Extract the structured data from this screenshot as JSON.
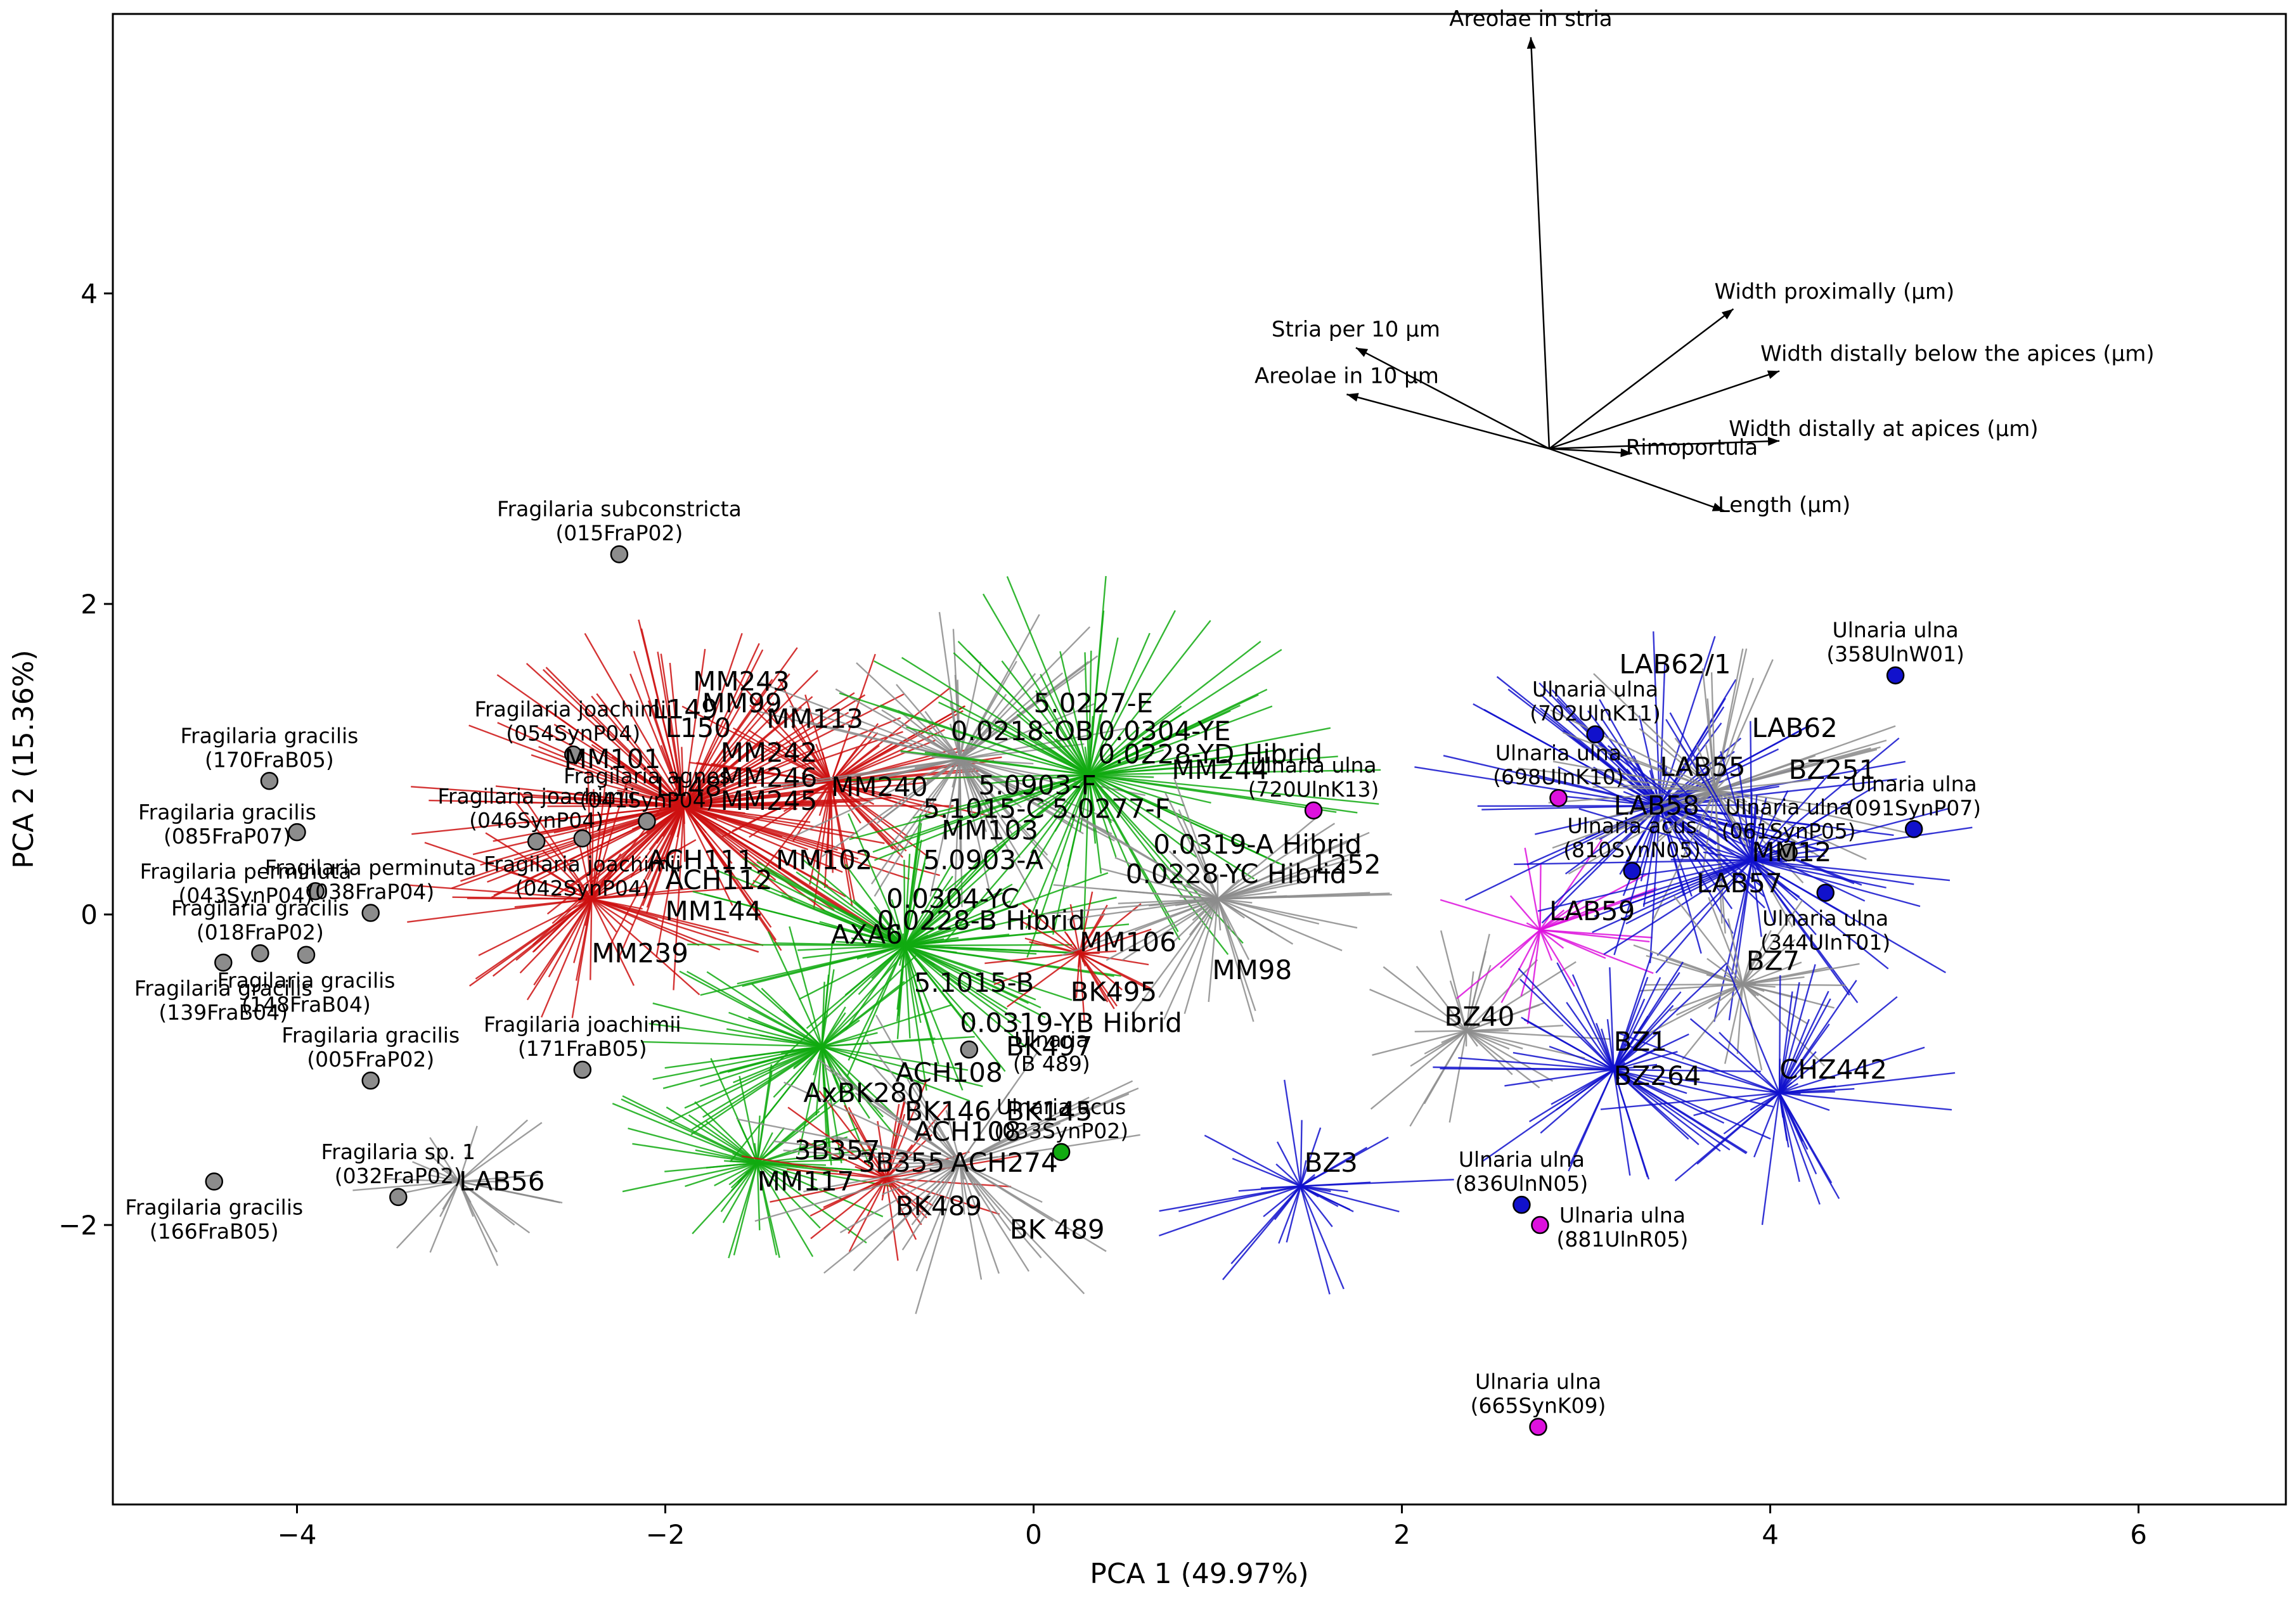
{
  "chart_data": {
    "type": "scatter",
    "title": "",
    "xlabel": "PCA 1 (49.97%)",
    "ylabel": "PCA 2 (15.36%)",
    "xlim": [
      -5.0,
      6.8
    ],
    "ylim": [
      -3.8,
      5.8
    ],
    "xticks": [
      -4,
      -2,
      0,
      2,
      4,
      6
    ],
    "yticks": [
      -2,
      0,
      2,
      4
    ],
    "colors": {
      "gray": "#8c8c8c",
      "red": "#cc1111",
      "green": "#11aa11",
      "blue": "#1111cc",
      "magenta": "#dd11dd",
      "axis": "#000000"
    },
    "reference_points": [
      {
        "label_line1": "Fragilaria subconstricta",
        "label_line2": "(015FraP02)",
        "x": -2.25,
        "y": 2.32,
        "color": "gray",
        "label_pos": "above"
      },
      {
        "label_line1": "Fragilaria gracilis",
        "label_line2": "(170FraB05)",
        "x": -4.15,
        "y": 0.86,
        "color": "gray",
        "label_pos": "above"
      },
      {
        "label_line1": "Fragilaria gracilis",
        "label_line2": "(085FraP07)",
        "x": -4.0,
        "y": 0.53,
        "color": "gray",
        "label_pos": "left"
      },
      {
        "label_line1": "Fragilaria perminuta",
        "label_line2": "(043SynP04)",
        "x": -3.9,
        "y": 0.15,
        "color": "gray",
        "label_pos": "left"
      },
      {
        "label_line1": "Fragilaria gracilis",
        "label_line2": "(018FraP02)",
        "x": -4.2,
        "y": -0.25,
        "color": "gray",
        "label_pos": "above"
      },
      {
        "label_line1": "Fragilaria gracilis",
        "label_line2": "(139FraB04)",
        "x": -4.4,
        "y": -0.31,
        "color": "gray",
        "label_pos": "below"
      },
      {
        "label_line1": "Fragilaria gracilis",
        "label_line2": "(148FraB04)",
        "x": -3.95,
        "y": -0.26,
        "color": "gray",
        "label_pos": "below"
      },
      {
        "label_line1": "Fragilaria perminuta",
        "label_line2": "(038FraP04)",
        "x": -3.6,
        "y": 0.01,
        "color": "gray",
        "label_pos": "above"
      },
      {
        "label_line1": "Fragilaria joachimii",
        "label_line2": "(054SynP04)",
        "x": -2.5,
        "y": 1.03,
        "color": "gray",
        "label_pos": "above"
      },
      {
        "label_line1": "Fragilaria joachimii",
        "label_line2": "(046SynP04)",
        "x": -2.7,
        "y": 0.47,
        "color": "gray",
        "label_pos": "above"
      },
      {
        "label_line1": "Fragilaria joachimii",
        "label_line2": "(042SynP04)",
        "x": -2.45,
        "y": 0.49,
        "color": "gray",
        "label_pos": "below"
      },
      {
        "label_line1": "Fragilaria agnes",
        "label_line2": "(041SynP04)",
        "x": -2.1,
        "y": 0.6,
        "color": "gray",
        "label_pos": "above"
      },
      {
        "label_line1": "Fragilaria joachimii",
        "label_line2": "(171FraB05)",
        "x": -2.45,
        "y": -1.0,
        "color": "gray",
        "label_pos": "above"
      },
      {
        "label_line1": "Fragilaria gracilis",
        "label_line2": "(005FraP02)",
        "x": -3.6,
        "y": -1.07,
        "color": "gray",
        "label_pos": "above"
      },
      {
        "label_line1": "Fragilaria sp. 1",
        "label_line2": "(032FraP02)",
        "x": -3.45,
        "y": -1.82,
        "color": "gray",
        "label_pos": "above"
      },
      {
        "label_line1": "Fragilaria gracilis",
        "label_line2": "(166FraB05)",
        "x": -4.45,
        "y": -1.72,
        "color": "gray",
        "label_pos": "below"
      },
      {
        "label_line1": "Ulnaria ulna",
        "label_line2": "(720UlnK13)",
        "x": 1.52,
        "y": 0.67,
        "color": "magenta",
        "label_pos": "above"
      },
      {
        "label_line1": "Ulnaria",
        "label_line2": "(B 489)",
        "x": -0.35,
        "y": -0.87,
        "color": "gray",
        "label_pos": "right"
      },
      {
        "label_line1": "Ulnaria acus",
        "label_line2": "(033SynP02)",
        "x": 0.15,
        "y": -1.53,
        "color": "green",
        "label_pos": "above"
      },
      {
        "label_line1": "Ulnaria ulna",
        "label_line2": "(358UlnW01)",
        "x": 4.68,
        "y": 1.54,
        "color": "blue",
        "label_pos": "above"
      },
      {
        "label_line1": "Ulnaria ulna",
        "label_line2": "(702UlnK11)",
        "x": 3.05,
        "y": 1.16,
        "color": "blue",
        "label_pos": "above"
      },
      {
        "label_line1": "Ulnaria ulna",
        "label_line2": "(698UlnK10)",
        "x": 2.85,
        "y": 0.75,
        "color": "magenta",
        "label_pos": "above"
      },
      {
        "label_line1": "Ulnaria acus",
        "label_line2": "(810SynN05)",
        "x": 3.25,
        "y": 0.28,
        "color": "blue",
        "label_pos": "above"
      },
      {
        "label_line1": "Ulnaria ulna",
        "label_line2": "(061SynP05)",
        "x": 4.1,
        "y": 0.4,
        "color": "gray",
        "label_pos": "above"
      },
      {
        "label_line1": "Ulnaria ulna",
        "label_line2": "(091SynP07)",
        "x": 4.78,
        "y": 0.55,
        "color": "blue",
        "label_pos": "above"
      },
      {
        "label_line1": "Ulnaria ulna",
        "label_line2": "(344UlnT01)",
        "x": 4.3,
        "y": 0.14,
        "color": "blue",
        "label_pos": "below"
      },
      {
        "label_line1": "Ulnaria ulna",
        "label_line2": "(836UlnN05)",
        "x": 2.65,
        "y": -1.87,
        "color": "blue",
        "label_pos": "above"
      },
      {
        "label_line1": "Ulnaria ulna",
        "label_line2": "(881UlnR05)",
        "x": 2.75,
        "y": -2.0,
        "color": "magenta",
        "label_pos": "right"
      },
      {
        "label_line1": "Ulnaria ulna",
        "label_line2": "(665SynK09)",
        "x": 2.74,
        "y": -3.3,
        "color": "magenta",
        "label_pos": "above"
      }
    ],
    "centroid_labels": [
      {
        "label": "LAB56",
        "x": -3.12,
        "y": -1.72
      },
      {
        "label": "MM243",
        "x": -1.85,
        "y": 1.5
      },
      {
        "label": "MM99",
        "x": -1.8,
        "y": 1.36
      },
      {
        "label": "L149",
        "x": -2.07,
        "y": 1.32
      },
      {
        "label": "MM113",
        "x": -1.45,
        "y": 1.26
      },
      {
        "label": "L150",
        "x": -2.0,
        "y": 1.2
      },
      {
        "label": "MM242",
        "x": -1.7,
        "y": 1.04
      },
      {
        "label": "MM101",
        "x": -2.55,
        "y": 1.0
      },
      {
        "label": "MM246",
        "x": -1.7,
        "y": 0.88
      },
      {
        "label": "MM245",
        "x": -1.7,
        "y": 0.73
      },
      {
        "label": "MM240",
        "x": -1.1,
        "y": 0.82
      },
      {
        "label": "L148",
        "x": -2.05,
        "y": 0.82
      },
      {
        "label": "ACH111",
        "x": -2.1,
        "y": 0.35
      },
      {
        "label": "MM102",
        "x": -1.4,
        "y": 0.35
      },
      {
        "label": "ACH112",
        "x": -2.0,
        "y": 0.22
      },
      {
        "label": "MM144",
        "x": -2.0,
        "y": 0.02
      },
      {
        "label": "MM239",
        "x": -2.4,
        "y": -0.25
      },
      {
        "label": "5.0227-E",
        "x": 0.0,
        "y": 1.36
      },
      {
        "label": "0.0218-OB",
        "x": -0.45,
        "y": 1.18
      },
      {
        "label": "0.0304-YE",
        "x": 0.35,
        "y": 1.18
      },
      {
        "label": "0.0228-YD Hibrid",
        "x": 0.35,
        "y": 1.03
      },
      {
        "label": "MM244",
        "x": 0.75,
        "y": 0.93
      },
      {
        "label": "5.0903-F",
        "x": -0.3,
        "y": 0.83
      },
      {
        "label": "5.1015-C",
        "x": -0.6,
        "y": 0.68
      },
      {
        "label": "5.0277-F",
        "x": 0.1,
        "y": 0.68
      },
      {
        "label": "MM103",
        "x": -0.5,
        "y": 0.54
      },
      {
        "label": "0.0319-A Hibrid",
        "x": 0.65,
        "y": 0.45
      },
      {
        "label": "5.0903-A",
        "x": -0.6,
        "y": 0.35
      },
      {
        "label": "0.0228-YC Hibrid",
        "x": 0.5,
        "y": 0.26
      },
      {
        "label": "L252",
        "x": 1.53,
        "y": 0.32
      },
      {
        "label": "0.0304-YC",
        "x": -0.8,
        "y": 0.1
      },
      {
        "label": "0.0228-B Hibrid",
        "x": -0.85,
        "y": -0.04
      },
      {
        "label": "AXA6",
        "x": -1.1,
        "y": -0.13
      },
      {
        "label": "MM106",
        "x": 0.25,
        "y": -0.18
      },
      {
        "label": "MM98",
        "x": 0.97,
        "y": -0.36
      },
      {
        "label": "5.1015-B",
        "x": -0.65,
        "y": -0.44
      },
      {
        "label": "BK495",
        "x": 0.2,
        "y": -0.5
      },
      {
        "label": "0.0319-YB Hibrid",
        "x": -0.4,
        "y": -0.7
      },
      {
        "label": "BK497",
        "x": -0.15,
        "y": -0.85
      },
      {
        "label": "ACH108",
        "x": -0.75,
        "y": -1.02
      },
      {
        "label": "AxBK280",
        "x": -1.25,
        "y": -1.15
      },
      {
        "label": "BK146",
        "x": -0.7,
        "y": -1.27
      },
      {
        "label": "BK145",
        "x": -0.15,
        "y": -1.27
      },
      {
        "label": "ACH108",
        "x": -0.65,
        "y": -1.4
      },
      {
        "label": "3B357",
        "x": -1.3,
        "y": -1.52
      },
      {
        "label": "3B355",
        "x": -0.95,
        "y": -1.6
      },
      {
        "label": "ACH274",
        "x": -0.45,
        "y": -1.6
      },
      {
        "label": "MM117",
        "x": -1.5,
        "y": -1.72
      },
      {
        "label": "BK489",
        "x": -0.75,
        "y": -1.88
      },
      {
        "label": "BK 489",
        "x": -0.13,
        "y": -2.03
      },
      {
        "label": "LAB62/1",
        "x": 3.18,
        "y": 1.61
      },
      {
        "label": "LAB62",
        "x": 3.9,
        "y": 1.2
      },
      {
        "label": "LAB55",
        "x": 3.4,
        "y": 0.95
      },
      {
        "label": "BZ251",
        "x": 4.1,
        "y": 0.93
      },
      {
        "label": "LAB58",
        "x": 3.15,
        "y": 0.7
      },
      {
        "label": "MM12",
        "x": 3.9,
        "y": 0.4
      },
      {
        "label": "LAB57",
        "x": 3.6,
        "y": 0.2
      },
      {
        "label": "LAB59",
        "x": 2.8,
        "y": 0.02
      },
      {
        "label": "BZ7",
        "x": 3.87,
        "y": -0.3
      },
      {
        "label": "BZ40",
        "x": 2.23,
        "y": -0.66
      },
      {
        "label": "BZ1",
        "x": 3.15,
        "y": -0.82
      },
      {
        "label": "BZ264",
        "x": 3.15,
        "y": -1.04
      },
      {
        "label": "CHZ442",
        "x": 4.05,
        "y": -1.0
      },
      {
        "label": "BZ3",
        "x": 1.47,
        "y": -1.6
      }
    ],
    "clusters": [
      {
        "name": "LAB56",
        "x": -3.12,
        "y": -1.72,
        "color": "gray",
        "spread": 0.6,
        "n": 28,
        "seed": 1
      },
      {
        "name": "red-main",
        "x": -1.9,
        "y": 0.7,
        "color": "red",
        "spread": 1.3,
        "n": 160,
        "seed": 2
      },
      {
        "name": "red-left",
        "x": -2.4,
        "y": 0.1,
        "color": "red",
        "spread": 0.9,
        "n": 60,
        "seed": 3
      },
      {
        "name": "red-mid",
        "x": -1.1,
        "y": 0.85,
        "color": "red",
        "spread": 0.9,
        "n": 70,
        "seed": 4
      },
      {
        "name": "gray-mid",
        "x": -0.4,
        "y": 1.0,
        "color": "gray",
        "spread": 1.1,
        "n": 80,
        "seed": 5
      },
      {
        "name": "green-mid",
        "x": 0.3,
        "y": 0.9,
        "color": "green",
        "spread": 1.4,
        "n": 110,
        "seed": 6
      },
      {
        "name": "green-low",
        "x": -0.7,
        "y": -0.2,
        "color": "green",
        "spread": 1.1,
        "n": 120,
        "seed": 7
      },
      {
        "name": "green-left",
        "x": -1.15,
        "y": -0.85,
        "color": "green",
        "spread": 0.9,
        "n": 70,
        "seed": 8
      },
      {
        "name": "green-bottom",
        "x": -1.5,
        "y": -1.6,
        "color": "green",
        "spread": 0.8,
        "n": 60,
        "seed": 9
      },
      {
        "name": "red-bottom",
        "x": -0.8,
        "y": -1.7,
        "color": "red",
        "spread": 0.7,
        "n": 40,
        "seed": 10
      },
      {
        "name": "gray-bottom",
        "x": -0.4,
        "y": -1.6,
        "color": "gray",
        "spread": 1.1,
        "n": 50,
        "seed": 11
      },
      {
        "name": "MM106",
        "x": 0.25,
        "y": -0.25,
        "color": "red",
        "spread": 0.5,
        "n": 30,
        "seed": 12
      },
      {
        "name": "MM98",
        "x": 1.0,
        "y": 0.1,
        "color": "gray",
        "spread": 0.9,
        "n": 60,
        "seed": 13
      },
      {
        "name": "BZ40",
        "x": 2.35,
        "y": -0.75,
        "color": "gray",
        "spread": 0.7,
        "n": 35,
        "seed": 14
      },
      {
        "name": "BZ3",
        "x": 1.45,
        "y": -1.75,
        "color": "blue",
        "spread": 0.75,
        "n": 40,
        "seed": 15
      },
      {
        "name": "LAB59",
        "x": 2.75,
        "y": -0.1,
        "color": "magenta",
        "spread": 0.7,
        "n": 25,
        "seed": 16
      },
      {
        "name": "blue-main",
        "x": 3.4,
        "y": 0.7,
        "color": "blue",
        "spread": 1.2,
        "n": 100,
        "seed": 17
      },
      {
        "name": "gray-right",
        "x": 3.7,
        "y": 0.8,
        "color": "gray",
        "spread": 1.0,
        "n": 60,
        "seed": 18
      },
      {
        "name": "MM12",
        "x": 3.9,
        "y": 0.35,
        "color": "blue",
        "spread": 1.2,
        "n": 60,
        "seed": 19
      },
      {
        "name": "BZ7",
        "x": 3.85,
        "y": -0.45,
        "color": "gray",
        "spread": 0.7,
        "n": 40,
        "seed": 20
      },
      {
        "name": "BZ1",
        "x": 3.15,
        "y": -1.0,
        "color": "blue",
        "spread": 0.9,
        "n": 60,
        "seed": 21
      },
      {
        "name": "CHZ442",
        "x": 4.05,
        "y": -1.15,
        "color": "blue",
        "spread": 0.9,
        "n": 50,
        "seed": 22
      }
    ],
    "loadings": {
      "origin": [
        2.8,
        3.0
      ],
      "vectors": [
        {
          "label": "Areolae in stria",
          "dx": -0.1,
          "dy": 2.65,
          "label_pos": "above"
        },
        {
          "label": "Width proximally (µm)",
          "dx": 1.0,
          "dy": 0.9,
          "label_pos": "above-right"
        },
        {
          "label": "Stria per 10 µm",
          "dx": -1.05,
          "dy": 0.65,
          "label_pos": "above"
        },
        {
          "label": "Width distally below the apices (µm)",
          "dx": 1.25,
          "dy": 0.5,
          "label_pos": "above-right"
        },
        {
          "label": "Areolae in 10 µm",
          "dx": -1.1,
          "dy": 0.35,
          "label_pos": "above"
        },
        {
          "label": "Width distally at apices (µm)",
          "dx": 1.25,
          "dy": 0.05,
          "label_pos": "right"
        },
        {
          "label": "Rimoportula",
          "dx": 0.45,
          "dy": -0.03,
          "label_pos": "below-right"
        },
        {
          "label": "Length (µm)",
          "dx": 0.95,
          "dy": -0.4,
          "label_pos": "below-right"
        }
      ]
    }
  }
}
